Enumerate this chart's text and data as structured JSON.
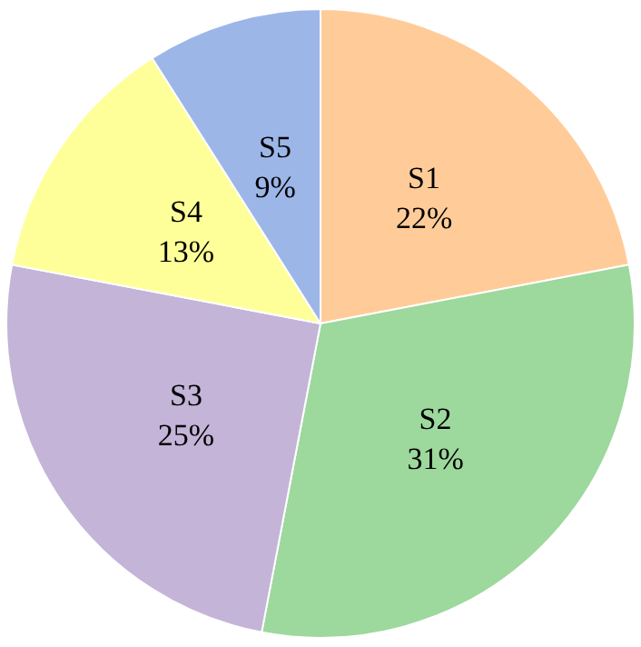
{
  "chart_data": {
    "type": "pie",
    "categories": [
      "S1",
      "S2",
      "S3",
      "S4",
      "S5"
    ],
    "values": [
      22,
      31,
      25,
      13,
      9
    ],
    "colors": [
      "#ffcc99",
      "#9dd89d",
      "#c3b4d8",
      "#ffff99",
      "#9cb6e8"
    ],
    "value_labels": [
      "22%",
      "31%",
      "25%",
      "13%",
      "9%"
    ]
  }
}
